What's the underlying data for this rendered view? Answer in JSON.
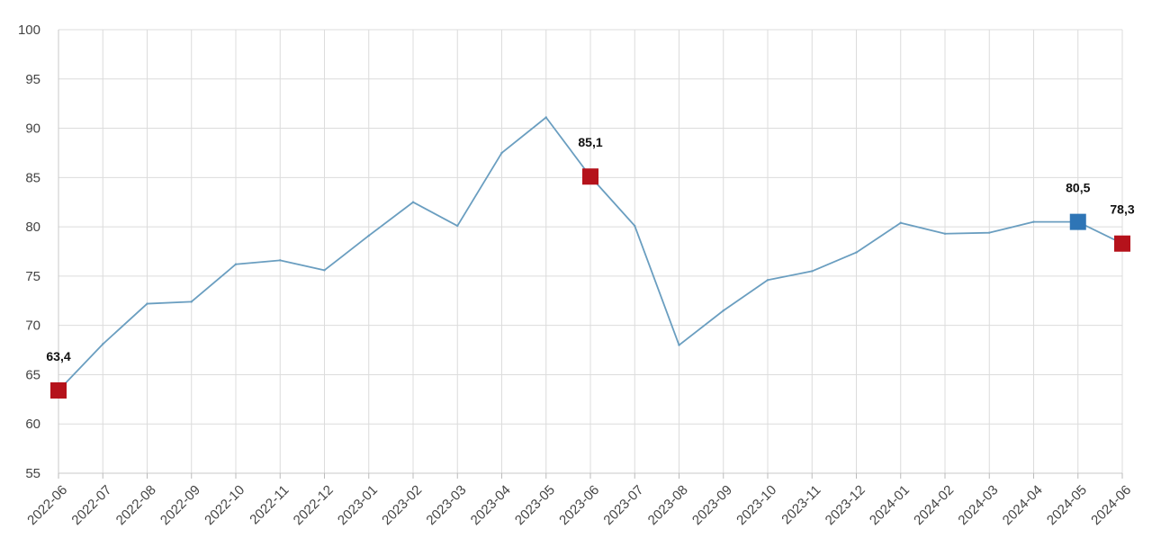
{
  "chart_data": {
    "type": "line",
    "title": "",
    "xlabel": "",
    "ylabel": "",
    "ylim": [
      55,
      100
    ],
    "yticks": [
      55,
      60,
      65,
      70,
      75,
      80,
      85,
      90,
      95,
      100
    ],
    "grid": true,
    "legend": "none",
    "line_color": "#6a9ec0",
    "grid_color": "#dcdcdc",
    "categories": [
      "2022-06",
      "2022-07",
      "2022-08",
      "2022-09",
      "2022-10",
      "2022-11",
      "2022-12",
      "2023-01",
      "2023-02",
      "2023-03",
      "2023-04",
      "2023-05",
      "2023-06",
      "2023-07",
      "2023-08",
      "2023-09",
      "2023-10",
      "2023-11",
      "2023-12",
      "2024-01",
      "2024-02",
      "2024-03",
      "2024-04",
      "2024-05",
      "2024-06"
    ],
    "series": [
      {
        "values": [
          63.4,
          68.1,
          72.2,
          72.4,
          76.2,
          76.6,
          75.6,
          79.1,
          82.5,
          80.1,
          87.5,
          91.1,
          85.1,
          80.1,
          68.0,
          71.5,
          74.6,
          75.5,
          77.4,
          80.4,
          79.3,
          79.4,
          80.5,
          80.5,
          78.3
        ]
      }
    ],
    "highlights": [
      {
        "category": "2022-06",
        "value": 63.4,
        "label": "63,4",
        "color": "#b5121b"
      },
      {
        "category": "2023-06",
        "value": 85.1,
        "label": "85,1",
        "color": "#b5121b"
      },
      {
        "category": "2024-05",
        "value": 80.5,
        "label": "80,5",
        "color": "#2e75b6"
      },
      {
        "category": "2024-06",
        "value": 78.3,
        "label": "78,3",
        "color": "#b5121b"
      }
    ]
  }
}
